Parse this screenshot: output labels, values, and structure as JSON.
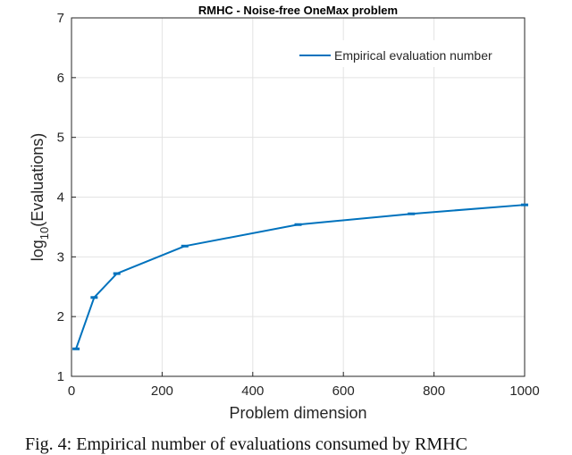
{
  "chart_data": {
    "type": "line",
    "title": "RMHC - Noise-free OneMax problem",
    "xlabel": "Problem dimension",
    "ylabel_main": "log",
    "ylabel_sub": "10",
    "ylabel_rest": "(Evaluations)",
    "xlim": [
      0,
      1000
    ],
    "ylim": [
      1,
      7
    ],
    "xticks": [
      0,
      200,
      400,
      600,
      800,
      1000
    ],
    "yticks": [
      1,
      2,
      3,
      4,
      5,
      6,
      7
    ],
    "grid": true,
    "legend_position": "top-right",
    "series": [
      {
        "name": "Empirical evaluation number",
        "color": "#0072BD",
        "x": [
          10,
          50,
          100,
          250,
          500,
          750,
          1000
        ],
        "y": [
          1.46,
          2.32,
          2.72,
          3.18,
          3.54,
          3.72,
          3.87
        ]
      }
    ]
  },
  "caption": "Fig. 4: Empirical number of evaluations consumed by RMHC"
}
